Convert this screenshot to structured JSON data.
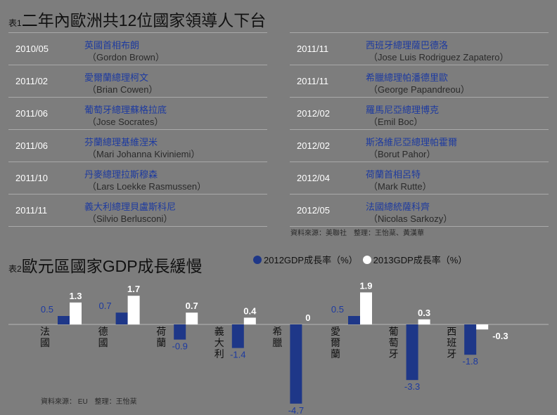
{
  "table1": {
    "prefix": "表1",
    "title": "二年內歐洲共12位國家領導人下台",
    "left": [
      {
        "date": "2010/05",
        "name": "英國首相布朗",
        "en": "（Gordon Brown）"
      },
      {
        "date": "2011/02",
        "name": "愛爾蘭總理柯文",
        "en": "（Brian Cowen）"
      },
      {
        "date": "2011/06",
        "name": "葡萄牙總理蘇格拉底",
        "en": "（Jose Socrates）"
      },
      {
        "date": "2011/06",
        "name": "芬蘭總理基維涅米",
        "en": "（Mari Johanna Kiviniemi）"
      },
      {
        "date": "2011/10",
        "name": "丹麥總理拉斯穆森",
        "en": "（Lars Loekke Rasmussen）"
      },
      {
        "date": "2011/11",
        "name": "義大利總理貝盧斯科尼",
        "en": "（Silvio Berlusconi）"
      }
    ],
    "right": [
      {
        "date": "2011/11",
        "name": "西班牙總理薩巴德洛",
        "en": "（Jose Luis Rodriguez Zapatero）"
      },
      {
        "date": "2011/11",
        "name": "希臘總理帕潘德里歐",
        "en": "（George Papandreou）"
      },
      {
        "date": "2012/02",
        "name": "羅馬尼亞總理博克",
        "en": "（Emil Boc）"
      },
      {
        "date": "2012/02",
        "name": "斯洛維尼亞總理帕霍爾",
        "en": "（Borut Pahor）"
      },
      {
        "date": "2012/04",
        "name": "荷蘭首相呂特",
        "en": "（Mark Rutte）"
      },
      {
        "date": "2012/05",
        "name": "法國總統薩科齊",
        "en": "（Nicolas Sarkozy）"
      }
    ],
    "source": "資料來源：美聯社　整理：王怡棻、黃漢華"
  },
  "chart_data": {
    "type": "bar",
    "prefix": "表2",
    "title": "歐元區國家GDP成長緩慢",
    "categories": [
      "法國",
      "德國",
      "荷蘭",
      "義大利",
      "希臘",
      "愛爾蘭",
      "葡萄牙",
      "西班牙"
    ],
    "series": [
      {
        "name": "2012GDP成長率（%）",
        "color": "#1e3788",
        "values": [
          0.5,
          0.7,
          -0.9,
          -1.4,
          -4.7,
          0.5,
          -3.3,
          -1.8
        ]
      },
      {
        "name": "2013GDP成長率（%）",
        "color": "#ffffff",
        "values": [
          1.3,
          1.7,
          0.7,
          0.4,
          0,
          1.9,
          0.3,
          -0.3
        ]
      }
    ],
    "grid": false,
    "legend": "top",
    "source": "資料來源： EU　整理：王怡棻"
  },
  "colors": {
    "background": "#7d7d7d",
    "accent_blue": "#1d3aa0"
  }
}
